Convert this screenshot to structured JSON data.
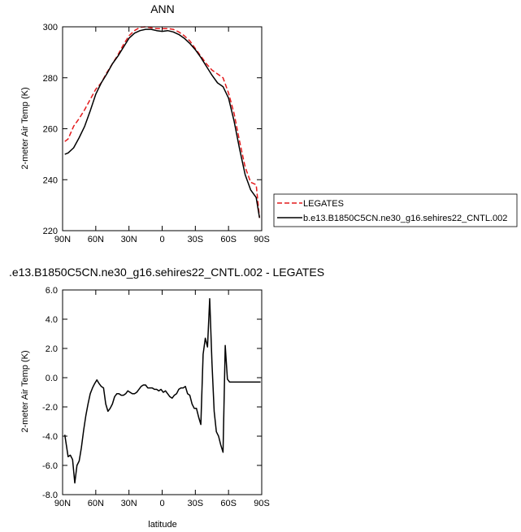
{
  "chart_data": [
    {
      "type": "line",
      "title": "ANN",
      "xlabel": "",
      "ylabel": "2-meter Air Temp (K)",
      "xlim": [
        -90,
        90
      ],
      "ylim": [
        220,
        300
      ],
      "x_ticks": [
        -90,
        -60,
        -30,
        0,
        30,
        60,
        90
      ],
      "x_tick_labels": [
        "90N",
        "60N",
        "30N",
        "0",
        "30S",
        "60S",
        "90S"
      ],
      "y_ticks": [
        220,
        240,
        260,
        280,
        300
      ],
      "y_tick_labels": [
        "220",
        "240",
        "260",
        "280",
        "300"
      ],
      "legend_position": "right",
      "series": [
        {
          "name": "LEGATES",
          "color": "#e41a1c",
          "dash": "dashed",
          "x": [
            -88,
            -85,
            -80,
            -75,
            -70,
            -65,
            -60,
            -55,
            -50,
            -45,
            -40,
            -35,
            -30,
            -25,
            -20,
            -15,
            -10,
            -5,
            0,
            5,
            10,
            15,
            20,
            25,
            30,
            35,
            40,
            45,
            50,
            55,
            60,
            65,
            70,
            75,
            80,
            85,
            88
          ],
          "y": [
            255,
            256,
            261,
            264,
            267.5,
            271.5,
            275.5,
            278,
            282,
            285.5,
            289,
            293,
            296.5,
            298.5,
            299.8,
            300,
            299.6,
            299.3,
            299.3,
            299.3,
            299,
            298,
            296.5,
            294.5,
            291.5,
            288.5,
            285.5,
            283,
            281.5,
            280,
            274,
            266,
            255,
            245,
            239,
            238,
            225
          ]
        },
        {
          "name": "b.e13.B1850C5CN.ne30_g16.sehires22_CNTL.002",
          "color": "#000000",
          "dash": "solid",
          "x": [
            -88,
            -85,
            -80,
            -75,
            -70,
            -65,
            -60,
            -55,
            -50,
            -45,
            -40,
            -35,
            -30,
            -25,
            -20,
            -15,
            -10,
            -5,
            0,
            5,
            10,
            15,
            20,
            25,
            30,
            35,
            40,
            45,
            50,
            55,
            60,
            65,
            70,
            75,
            80,
            85,
            88
          ],
          "y": [
            250,
            250.5,
            252.5,
            256.5,
            261,
            267,
            273.5,
            278,
            281.5,
            285.5,
            288.5,
            292,
            295.5,
            297.5,
            298.5,
            299,
            299,
            298.5,
            298.2,
            298.5,
            298,
            297,
            295.5,
            293.5,
            291,
            288,
            284.5,
            281,
            278,
            276.5,
            272,
            263,
            252,
            242,
            236,
            233,
            225
          ]
        }
      ]
    },
    {
      "type": "line",
      "title": ".e13.B1850C5CN.ne30_g16.sehires22_CNTL.002 - LEGATES",
      "xlabel": "latitude",
      "ylabel": "2-meter Air Temp (K)",
      "xlim": [
        -90,
        90
      ],
      "ylim": [
        -8,
        6
      ],
      "x_ticks": [
        -90,
        -60,
        -30,
        0,
        30,
        60,
        90
      ],
      "x_tick_labels": [
        "90N",
        "60N",
        "30N",
        "0",
        "30S",
        "60S",
        "90S"
      ],
      "y_ticks": [
        -8,
        -6,
        -4,
        -2,
        0,
        2,
        4,
        6
      ],
      "y_tick_labels": [
        "-8.0",
        "-6.0",
        "-4.0",
        "-2.0",
        "0.0",
        "2.0",
        "4.0",
        "6.0"
      ],
      "series": [
        {
          "color": "#000000",
          "dash": "solid",
          "x": [
            -88,
            -85,
            -83,
            -81,
            -79,
            -77,
            -75,
            -73,
            -71,
            -69,
            -67,
            -65,
            -63,
            -61,
            -59,
            -57,
            -55,
            -53,
            -51,
            -49,
            -47,
            -45,
            -43,
            -41,
            -39,
            -37,
            -35,
            -33,
            -31,
            -29,
            -27,
            -25,
            -23,
            -21,
            -19,
            -17,
            -15,
            -13,
            -11,
            -9,
            -7,
            -5,
            -3,
            -1,
            1,
            3,
            5,
            7,
            9,
            11,
            13,
            15,
            17,
            19,
            21,
            23,
            25,
            27,
            29,
            31,
            33,
            35,
            37,
            39,
            41,
            43,
            45,
            47,
            49,
            51,
            53,
            55,
            57,
            59,
            61,
            63,
            65,
            67,
            69,
            71,
            73,
            75,
            77,
            79,
            81,
            83,
            85,
            87,
            89
          ],
          "y": [
            -3.9,
            -5.4,
            -5.3,
            -5.6,
            -7.2,
            -6.0,
            -5.7,
            -4.8,
            -3.6,
            -2.6,
            -1.8,
            -1.1,
            -0.7,
            -0.4,
            -0.15,
            -0.4,
            -0.6,
            -0.7,
            -1.8,
            -2.3,
            -2.1,
            -1.8,
            -1.3,
            -1.1,
            -1.1,
            -1.2,
            -1.2,
            -1.1,
            -0.9,
            -1.0,
            -1.1,
            -1.1,
            -1.0,
            -0.8,
            -0.6,
            -0.5,
            -0.5,
            -0.7,
            -0.7,
            -0.7,
            -0.8,
            -0.8,
            -0.9,
            -0.8,
            -1.0,
            -0.9,
            -1.1,
            -1.3,
            -1.4,
            -1.2,
            -1.1,
            -0.8,
            -0.7,
            -0.7,
            -0.6,
            -1.1,
            -1.2,
            -1.8,
            -2.1,
            -2.1,
            -2.7,
            -3.2,
            1.6,
            2.7,
            2.1,
            5.4,
            1.0,
            -2.3,
            -3.7,
            -4.0,
            -4.6,
            -5.1,
            2.2,
            -0.1,
            -0.3,
            -0.3,
            -0.3,
            -0.3,
            -0.3,
            -0.3,
            -0.3,
            -0.3,
            -0.3,
            -0.3,
            -0.3,
            -0.3,
            -0.3,
            -0.3,
            -0.3
          ]
        }
      ]
    }
  ]
}
